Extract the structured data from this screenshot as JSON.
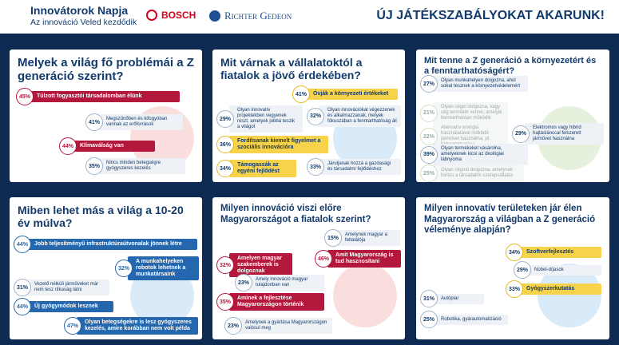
{
  "header": {
    "brand": "Innovátorok Napja",
    "tagline": "Az innováció Veled kezdődik",
    "partners": [
      "BOSCH",
      "Richter Gedeon"
    ],
    "headline": "ÚJ JÁTÉKSZABÁLYOKAT AKARUNK!"
  },
  "panels": [
    {
      "title": "Melyek a világ fő problémái a Z generáció szerint?",
      "items": [
        {
          "pct": "45%",
          "text": "Túlzott fogyasztói társadalomban élünk"
        },
        {
          "pct": "41%",
          "text": "Megszűnőben és kifogyóban vannak az erőforrások"
        },
        {
          "pct": "44%",
          "text": "Klímaválság van"
        },
        {
          "pct": "35%",
          "text": "Nincs minden betegségre gyógyszeres kezelés"
        }
      ]
    },
    {
      "title": "Mit várnak a vállalatoktól a fiatalok a jövő érdekében?",
      "items": [
        {
          "pct": "41%",
          "text": "Óvják a környezeti értékeket"
        },
        {
          "pct": "29%",
          "text": "Olyan innovatív projektekben vegyenek részt, amelyek jobbá teszik a világot"
        },
        {
          "pct": "32%",
          "text": "Olyan innovációkat végezzenek és alkalmazzanak, melyek fókuszában a fenntarthatóság áll"
        },
        {
          "pct": "36%",
          "text": "Fordítsanak kiemelt figyelmet a szociális innovációra"
        },
        {
          "pct": "34%",
          "text": "Támogassák az egyéni fejlődést"
        },
        {
          "pct": "33%",
          "text": "Járuljanak hozzá a gazdasági és társadalmi fejlődéshez"
        }
      ]
    },
    {
      "title": "Mit tenne a Z generáció a környezetért és a fenntarthatóságért?",
      "items": [
        {
          "pct": "27%",
          "text": "Olyan munkahelyen dolgozna, ahol sokat tesznek a környezetvédelemért"
        },
        {
          "pct": "21%",
          "text": "Olyan céget dolgozna, vagy cég termékét venné, amelyik fenntarthatóan működik"
        },
        {
          "pct": "22%",
          "text": "Alternatív energia használatával működő járművet használna, pl. hidrogénhajtású"
        },
        {
          "pct": "29%",
          "text": "Elektromos vagy hibrid hajtáslánccal felszerelt járművet használna"
        },
        {
          "pct": "39%",
          "text": "Olyan termékeket vásárolna, amelyeknek kicsi az ökológiai lábnyoma"
        },
        {
          "pct": "25%",
          "text": "Olyan cégnél dolgozna, amelynek fontos a társadalmi szerepvállalás"
        }
      ]
    },
    {
      "title": "Miben lehet más a világ a 10-20 év múlva?",
      "items": [
        {
          "pct": "44%",
          "text": "Jobb teljesítményű infrastruktúraútvonalak jönnek létre"
        },
        {
          "pct": "32%",
          "text": "A munkahelyeken robotok lehetnek a munkatársaink"
        },
        {
          "pct": "31%",
          "text": "Vezető nélküli járműveket már nem lesz ritkaság látni"
        },
        {
          "pct": "44%",
          "text": "Új gyógymódok lesznek"
        },
        {
          "pct": "47%",
          "text": "Olyan betegségekre is lesz gyógyszeres kezelés, amire korábban nem volt példa"
        }
      ]
    },
    {
      "title": "Milyen innováció viszi előre Magyarországot a fiatalok szerint?",
      "items": [
        {
          "pct": "15%",
          "text": "Amelynek magyar a feltalálója"
        },
        {
          "pct": "32%",
          "text": "Amelyen magyar szakemberek is dolgoznak"
        },
        {
          "pct": "46%",
          "text": "Amit Magyarország is tud hasznosítani"
        },
        {
          "pct": "23%",
          "text": "Amely innováció magyar tulajdonban van"
        },
        {
          "pct": "35%",
          "text": "Aminek a fejlesztése Magyarországon történik"
        },
        {
          "pct": "23%",
          "text": "Amelynek a gyártása Magyarországon valósul meg"
        }
      ]
    },
    {
      "title": "Milyen innovatív területeken jár élen Magyarország a világban a Z generáció véleménye alapján?",
      "items": [
        {
          "pct": "34%",
          "text": "Szoftverfejlesztés"
        },
        {
          "pct": "29%",
          "text": "Nobel-díjasok"
        },
        {
          "pct": "33%",
          "text": "Gyógyszerkutatás"
        },
        {
          "pct": "31%",
          "text": "Autópiar"
        },
        {
          "pct": "25%",
          "text": "Robotika, gyárautomatizáció"
        }
      ]
    }
  ]
}
